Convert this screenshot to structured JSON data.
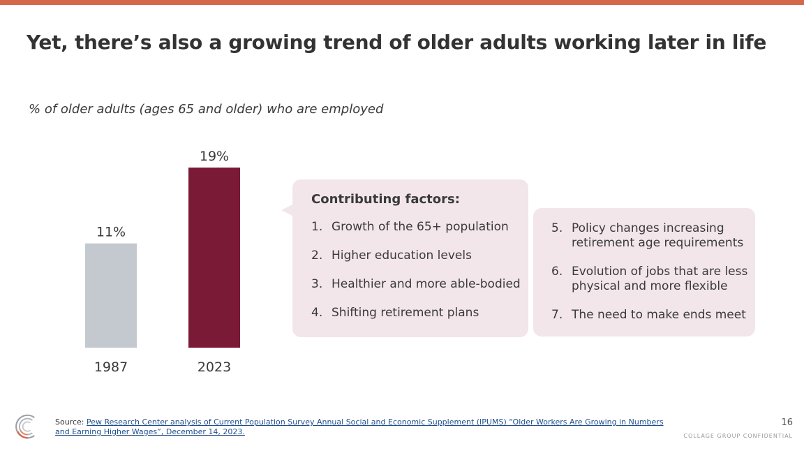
{
  "slide": {
    "title": "Yet, there’s also a growing trend of older adults working later in life",
    "subtitle": "% of older adults (ages 65 and older) who are employed",
    "page_number": "16",
    "confidential": "COLLAGE GROUP CONFIDENTIAL"
  },
  "chart_data": {
    "type": "bar",
    "categories": [
      "1987",
      "2023"
    ],
    "values": [
      11,
      19
    ],
    "data_labels": [
      "11%",
      "19%"
    ],
    "unit": "%",
    "ylim": [
      0,
      19
    ],
    "colors": [
      "#c4c9d0",
      "#7b1a36"
    ],
    "title": "% of older adults (ages 65 and older) who are employed",
    "xlabel": "",
    "ylabel": "",
    "grid": false
  },
  "factors": {
    "heading": "Contributing factors:",
    "items_left": [
      {
        "num": "1.",
        "text": "Growth of the 65+ population"
      },
      {
        "num": "2.",
        "text": "Higher education levels"
      },
      {
        "num": "3.",
        "text": "Healthier and more able-bodied"
      },
      {
        "num": "4.",
        "text": "Shifting retirement plans"
      }
    ],
    "items_right": [
      {
        "num": "5.",
        "text": "Policy changes increasing retirement age requirements"
      },
      {
        "num": "6.",
        "text": "Evolution of jobs that are less physical and more flexible"
      },
      {
        "num": "7.",
        "text": "The need to make ends meet"
      }
    ],
    "panel_color": "#f2e6ea"
  },
  "footer": {
    "source_prefix": "Source:",
    "source_link": "Pew Research Center analysis of Current Population Survey Annual Social and Economic Supplement (IPUMS) “Older Workers Are Growing in Numbers and Earning Higher Wages”, December 14, 2023."
  },
  "colors": {
    "accent_bar": "#d4694a",
    "link": "#1f4e8c"
  },
  "icons": {
    "logo": "collage-group-logo"
  }
}
